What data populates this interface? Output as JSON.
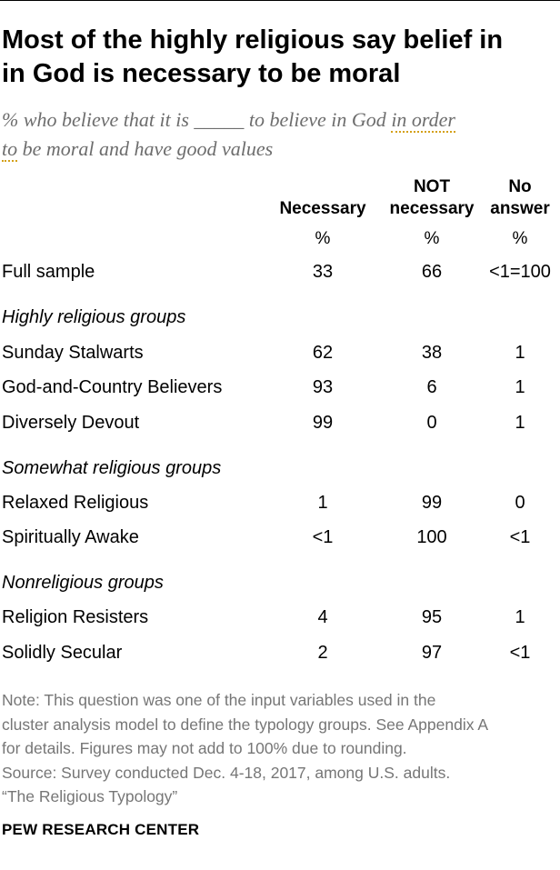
{
  "title_lines": [
    "Most of the highly religious say belief in",
    "in God is necessary to be moral"
  ],
  "subtitle": {
    "part1": "% who believe that it is _____ to believe in God ",
    "dotted1": "in order",
    "dotted2": "to",
    "part2": " be moral and have good values"
  },
  "columns": {
    "necessary": "Necessary",
    "not_necessary_line1": "NOT",
    "not_necessary_line2": "necessary",
    "no_answer_line1": "No",
    "no_answer_line2": "answer",
    "pct_symbol": "%"
  },
  "chart_data": {
    "type": "table",
    "columns": [
      "Necessary",
      "NOT necessary",
      "No answer"
    ],
    "unit": "%",
    "full_sample": {
      "label": "Full sample",
      "values": [
        "33",
        "66",
        "<1=100"
      ]
    },
    "groups": [
      {
        "label": "Highly religious groups",
        "rows": [
          {
            "label": "Sunday Stalwarts",
            "values": [
              "62",
              "38",
              "1"
            ]
          },
          {
            "label": "God-and-Country Believers",
            "values": [
              "93",
              "6",
              "1"
            ]
          },
          {
            "label": "Diversely Devout",
            "values": [
              "99",
              "0",
              "1"
            ]
          }
        ]
      },
      {
        "label": "Somewhat religious groups",
        "rows": [
          {
            "label": "Relaxed Religious",
            "values": [
              "1",
              "99",
              "0"
            ]
          },
          {
            "label": "Spiritually Awake",
            "values": [
              "<1",
              "100",
              "<1"
            ]
          }
        ]
      },
      {
        "label": "Nonreligious groups",
        "rows": [
          {
            "label": "Religion Resisters",
            "values": [
              "4",
              "95",
              "1"
            ]
          },
          {
            "label": "Solidly Secular",
            "values": [
              "2",
              "97",
              "<1"
            ]
          }
        ]
      }
    ]
  },
  "note_lines": [
    "Note: This question was one of the input variables used in the",
    "cluster analysis model to define the typology groups. See Appendix A",
    "for details. Figures may not add to 100% due to rounding.",
    "Source: Survey conducted Dec. 4-18, 2017, among U.S. adults.",
    "“The Religious Typology”"
  ],
  "footer": "PEW RESEARCH CENTER",
  "colors": {
    "note_text": "#767676",
    "subtitle_text": "#6d6d6d",
    "dotted_underline": "#d4a017"
  }
}
